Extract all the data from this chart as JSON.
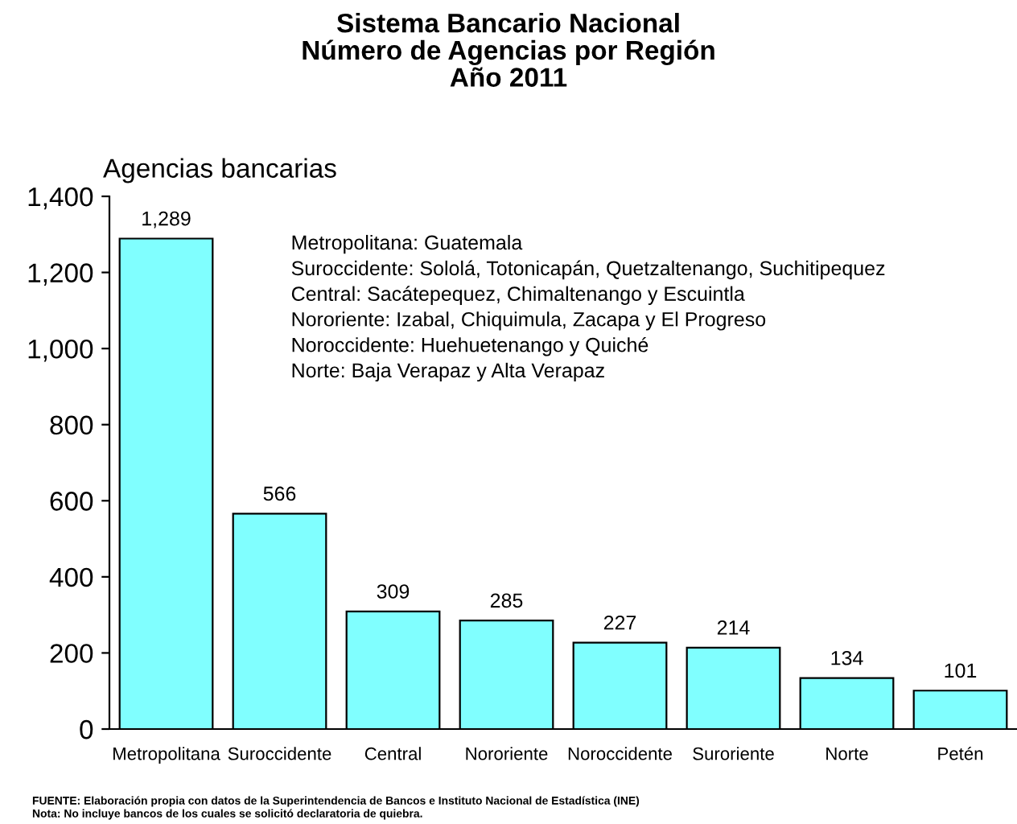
{
  "chart_data": {
    "type": "bar",
    "title": "Sistema Bancario Nacional\nNúmero de Agencias por Región\nAño 2011",
    "ylabel": "Agencias bancarias",
    "categories": [
      "Metropolitana",
      "Suroccidente",
      "Central",
      "Nororiente",
      "Noroccidente",
      "Suroriente",
      "Norte",
      "Petén"
    ],
    "values": [
      1289,
      566,
      309,
      285,
      227,
      214,
      134,
      101
    ],
    "value_labels": [
      "1,289",
      "566",
      "309",
      "285",
      "227",
      "214",
      "134",
      "101"
    ],
    "color": "#80ffff",
    "ylim": [
      0,
      1400
    ],
    "yticks": [
      {
        "value": 0,
        "label": "0"
      },
      {
        "value": 200,
        "label": "200"
      },
      {
        "value": 400,
        "label": "400"
      },
      {
        "value": 600,
        "label": "600"
      },
      {
        "value": 800,
        "label": "800"
      },
      {
        "value": 1000,
        "label": "1,000"
      },
      {
        "value": 1200,
        "label": "1,200"
      },
      {
        "value": 1400,
        "label": "1,400"
      }
    ],
    "grid": false,
    "legend": false,
    "annotations": [
      "Metropolitana: Guatemala",
      "Suroccidente: Sololá, Totonicapán, Quetzaltenango, Suchitipequez",
      "Central: Sacátepequez, Chimaltenango y Escuintla",
      "Nororiente: Izabal, Chiquimula, Zacapa y El Progreso",
      "Noroccidente: Huehuetenango y Quiché",
      "Norte: Baja Verapaz y Alta Verapaz",
      "FUENTE: Elaboración propia con datos de la Superintendencia de Bancos e Instituto Nacional de Estadística (INE)",
      "Nota: No incluye bancos de los cuales se solicitó declaratoria de quiebra."
    ]
  }
}
